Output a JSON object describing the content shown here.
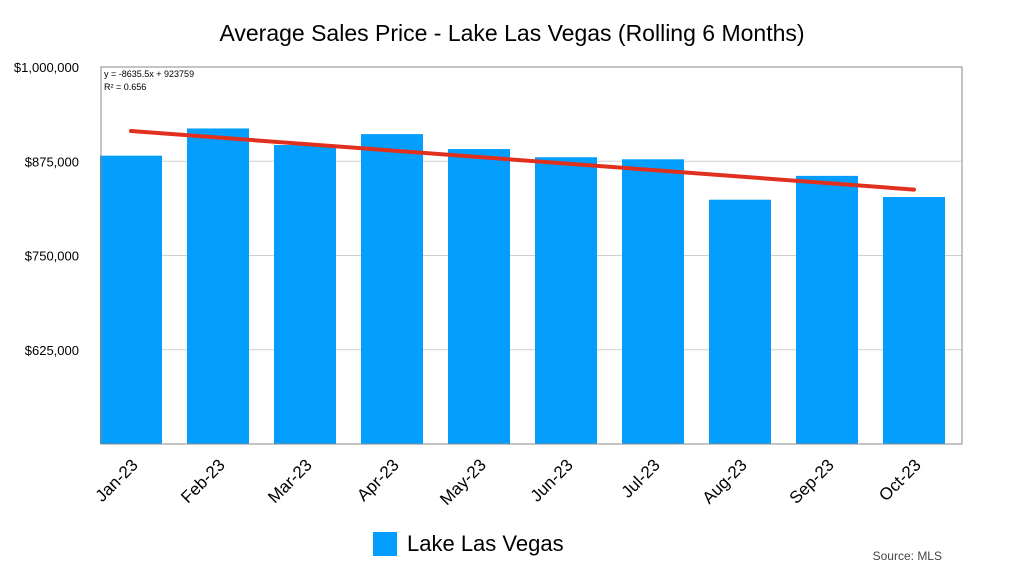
{
  "chart_data": {
    "type": "bar",
    "title": "Average Sales Price - Lake Las Vegas (Rolling 6 Months)",
    "categories": [
      "Jan-23",
      "Feb-23",
      "Mar-23",
      "Apr-23",
      "May-23",
      "Jun-23",
      "Jul-23",
      "Aug-23",
      "Sep-23",
      "Oct-23"
    ],
    "series": [
      {
        "name": "Lake Las Vegas",
        "values": [
          882400,
          918500,
          896500,
          911000,
          891200,
          880300,
          877600,
          824000,
          855600,
          827600
        ],
        "color": "#049ffe"
      }
    ],
    "ylim": [
      500000,
      1000000
    ],
    "yticks": [
      625000,
      750000,
      875000,
      1000000
    ],
    "ytick_labels": [
      "$625,000",
      "$750,000",
      "$875,000",
      "$1,000,000"
    ],
    "grid": true,
    "legend": "bottom",
    "trendline": {
      "type": "linear",
      "slope": -8635.5,
      "intercept": 923759,
      "color": "#e2301f",
      "equation": "y = -8635.5x + 923759",
      "r2": "R² = 0.656"
    },
    "source": "Source: MLS"
  }
}
